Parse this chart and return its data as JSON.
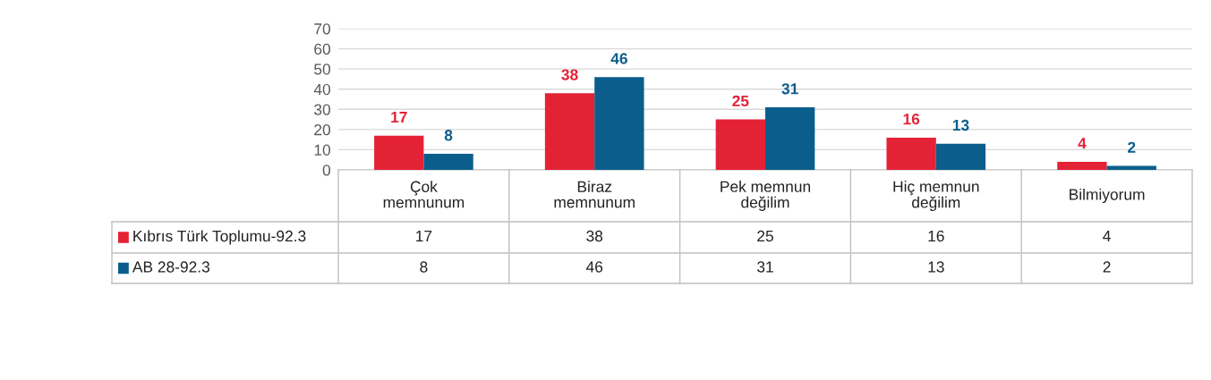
{
  "chart_data": {
    "type": "bar",
    "categories": [
      "Çok\nmemnunum",
      "Biraz\nmemnunum",
      "Pek memnun\ndeğilim",
      "Hiç memnun\ndeğilim",
      "Bilmiyorum"
    ],
    "series": [
      {
        "name": "Kıbrıs Türk Toplumu-92.3",
        "color": "#e32236",
        "values": [
          17,
          38,
          25,
          16,
          4
        ],
        "value_labels": [
          "17",
          "38",
          "25",
          "16",
          "4"
        ]
      },
      {
        "name": "AB 28-92.3",
        "color": "#0b5e8c",
        "values": [
          8,
          46,
          31,
          13,
          2
        ],
        "value_labels": [
          "8",
          "46",
          "31",
          "13",
          "2"
        ]
      }
    ],
    "ylim": [
      0,
      70
    ],
    "yticks": [
      0,
      10,
      20,
      30,
      40,
      50,
      60,
      70
    ],
    "grid": "y",
    "legend": "bottom left",
    "data_labels": true
  }
}
